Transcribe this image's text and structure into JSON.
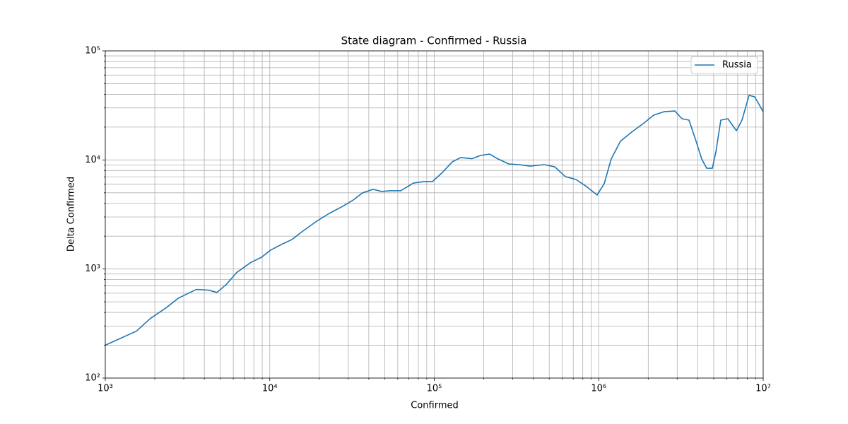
{
  "chart_data": {
    "type": "line",
    "title": "State diagram - Confirmed - Russia",
    "x_label": "Confirmed",
    "y_label": "Delta Confirmed",
    "x_scale": "log",
    "y_scale": "log",
    "grid": true,
    "minor_grid": true,
    "legend": "upper right",
    "xlim": [
      1000,
      10000000
    ],
    "ylim": [
      100,
      100000
    ],
    "xticks": [
      {
        "value": 1000,
        "label": "10³"
      },
      {
        "value": 10000,
        "label": "10⁴"
      },
      {
        "value": 100000,
        "label": "10⁵"
      },
      {
        "value": 1000000,
        "label": "10⁶"
      },
      {
        "value": 10000000,
        "label": "10⁷"
      }
    ],
    "yticks": [
      {
        "value": 100,
        "label": "10²"
      },
      {
        "value": 1000,
        "label": "10³"
      },
      {
        "value": 10000,
        "label": "10⁴"
      },
      {
        "value": 100000,
        "label": "10⁵"
      }
    ],
    "x": [
      1000,
      1550,
      1870,
      2340,
      2780,
      3580,
      4240,
      4770,
      5430,
      6300,
      7680,
      8900,
      10120,
      11970,
      13610,
      16110,
      19260,
      23030,
      27780,
      32220,
      36650,
      42500,
      47860,
      53400,
      62500,
      74700,
      86700,
      97500,
      111000,
      128800,
      145000,
      169800,
      191000,
      217200,
      244700,
      283800,
      329400,
      382300,
      465700,
      540400,
      627000,
      726600,
      843300,
      977200,
      1079000,
      1191000,
      1355000,
      1603000,
      1862000,
      2158000,
      2500000,
      2904000,
      3206000,
      3540000,
      3909000,
      4227000,
      4530000,
      4908000,
      5155000,
      5522000,
      6097000,
      6871000,
      7430000,
      8204000,
      8872000,
      10000000
    ],
    "series": [
      {
        "name": "Russia",
        "color": "#1f77b4",
        "values": [
          200,
          270,
          350,
          440,
          540,
          650,
          640,
          610,
          720,
          930,
          1150,
          1280,
          1490,
          1700,
          1860,
          2260,
          2740,
          3240,
          3760,
          4300,
          4990,
          5380,
          5140,
          5220,
          5220,
          6140,
          6330,
          6330,
          7570,
          9610,
          10520,
          10270,
          10990,
          11320,
          10200,
          9190,
          9050,
          8780,
          9050,
          8650,
          7030,
          6620,
          5700,
          4770,
          6050,
          10200,
          14830,
          18250,
          21500,
          25720,
          27700,
          28120,
          23880,
          23170,
          14830,
          10200,
          8400,
          8400,
          11830,
          23170,
          23880,
          18530,
          23170,
          39090,
          37930,
          27700
        ]
      }
    ]
  }
}
